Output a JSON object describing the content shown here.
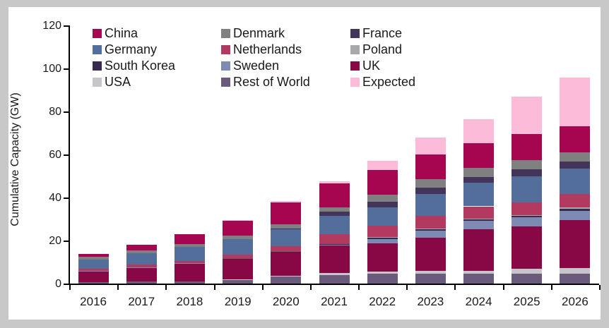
{
  "frame": {
    "background": "#c8c8c8",
    "panel_background": "#ffffff"
  },
  "chart_data": {
    "type": "bar",
    "stacked": true,
    "title": "",
    "xlabel": "",
    "ylabel": "Cumulative Capacity (GW)",
    "ylim": [
      0,
      120
    ],
    "yticks": [
      "0",
      "20",
      "40",
      "60",
      "80",
      "100",
      "120"
    ],
    "grid": "off",
    "legend_position": "inside-top-left",
    "categories": [
      "2016",
      "2017",
      "2018",
      "2019",
      "2020",
      "2021",
      "2022",
      "2023",
      "2024",
      "2025",
      "2026"
    ],
    "legend_order": [
      "China",
      "Denmark",
      "France",
      "Germany",
      "Netherlands",
      "Poland",
      "South Korea",
      "Sweden",
      "UK",
      "USA",
      "Rest of World",
      "Expected"
    ],
    "stack_order_bottom_to_top": [
      "Rest of World",
      "USA",
      "UK",
      "Sweden",
      "South Korea",
      "Poland",
      "Netherlands",
      "Germany",
      "France",
      "Denmark",
      "China",
      "Expected"
    ],
    "series": [
      {
        "name": "China",
        "color": "#A60550",
        "values": [
          1.5,
          2.8,
          4.6,
          6.9,
          10.2,
          11.0,
          11.5,
          11.6,
          11.6,
          12.0,
          12.0
        ]
      },
      {
        "name": "Denmark",
        "color": "#808080",
        "values": [
          1.3,
          1.3,
          1.3,
          1.7,
          1.8,
          2.0,
          3.2,
          3.8,
          4.2,
          4.3,
          4.3
        ]
      },
      {
        "name": "France",
        "color": "#433459",
        "values": [
          0,
          0,
          0,
          0,
          0.3,
          2.0,
          2.5,
          2.8,
          2.8,
          3.3,
          3.3
        ]
      },
      {
        "name": "Germany",
        "color": "#546E9B",
        "values": [
          4.0,
          5.3,
          6.4,
          6.9,
          7.9,
          8.3,
          8.5,
          10.4,
          10.9,
          12.0,
          12.0
        ]
      },
      {
        "name": "Netherlands",
        "color": "#B23A61",
        "values": [
          1.1,
          1.1,
          1.1,
          2.0,
          2.7,
          4.7,
          5.5,
          5.8,
          5.8,
          6.0,
          6.0
        ]
      },
      {
        "name": "Poland",
        "color": "#A8A8AC",
        "values": [
          0,
          0,
          0,
          0,
          0,
          0,
          0.1,
          0.3,
          0.3,
          0.3,
          0.8
        ]
      },
      {
        "name": "South Korea",
        "color": "#38294E",
        "values": [
          0,
          0,
          0,
          0.1,
          0.1,
          0.1,
          0.6,
          0.7,
          0.7,
          0.8,
          0.8
        ]
      },
      {
        "name": "Sweden",
        "color": "#7C8AB4",
        "values": [
          0.2,
          0.2,
          0.2,
          0.2,
          0.2,
          0.6,
          2.0,
          3.3,
          4.0,
          4.3,
          4.3
        ]
      },
      {
        "name": "UK",
        "color": "#880845",
        "values": [
          5.1,
          6.5,
          8.2,
          9.2,
          10.8,
          12.7,
          13.3,
          15.5,
          19.3,
          19.5,
          22.5
        ]
      },
      {
        "name": "USA",
        "color": "#C6C5C9",
        "values": [
          0,
          0,
          0,
          0.1,
          0.5,
          1.0,
          1.0,
          1.2,
          1.2,
          2.2,
          2.4
        ]
      },
      {
        "name": "Rest of World",
        "color": "#6A5B7D",
        "values": [
          0.6,
          0.9,
          1.1,
          2.0,
          3.2,
          4.0,
          4.5,
          4.6,
          4.6,
          4.7,
          4.7
        ]
      },
      {
        "name": "Expected",
        "color": "#FCBBD8",
        "values": [
          0,
          0,
          0,
          0.3,
          0.8,
          1.2,
          4.3,
          7.9,
          11.0,
          17.6,
          22.6
        ]
      }
    ]
  }
}
